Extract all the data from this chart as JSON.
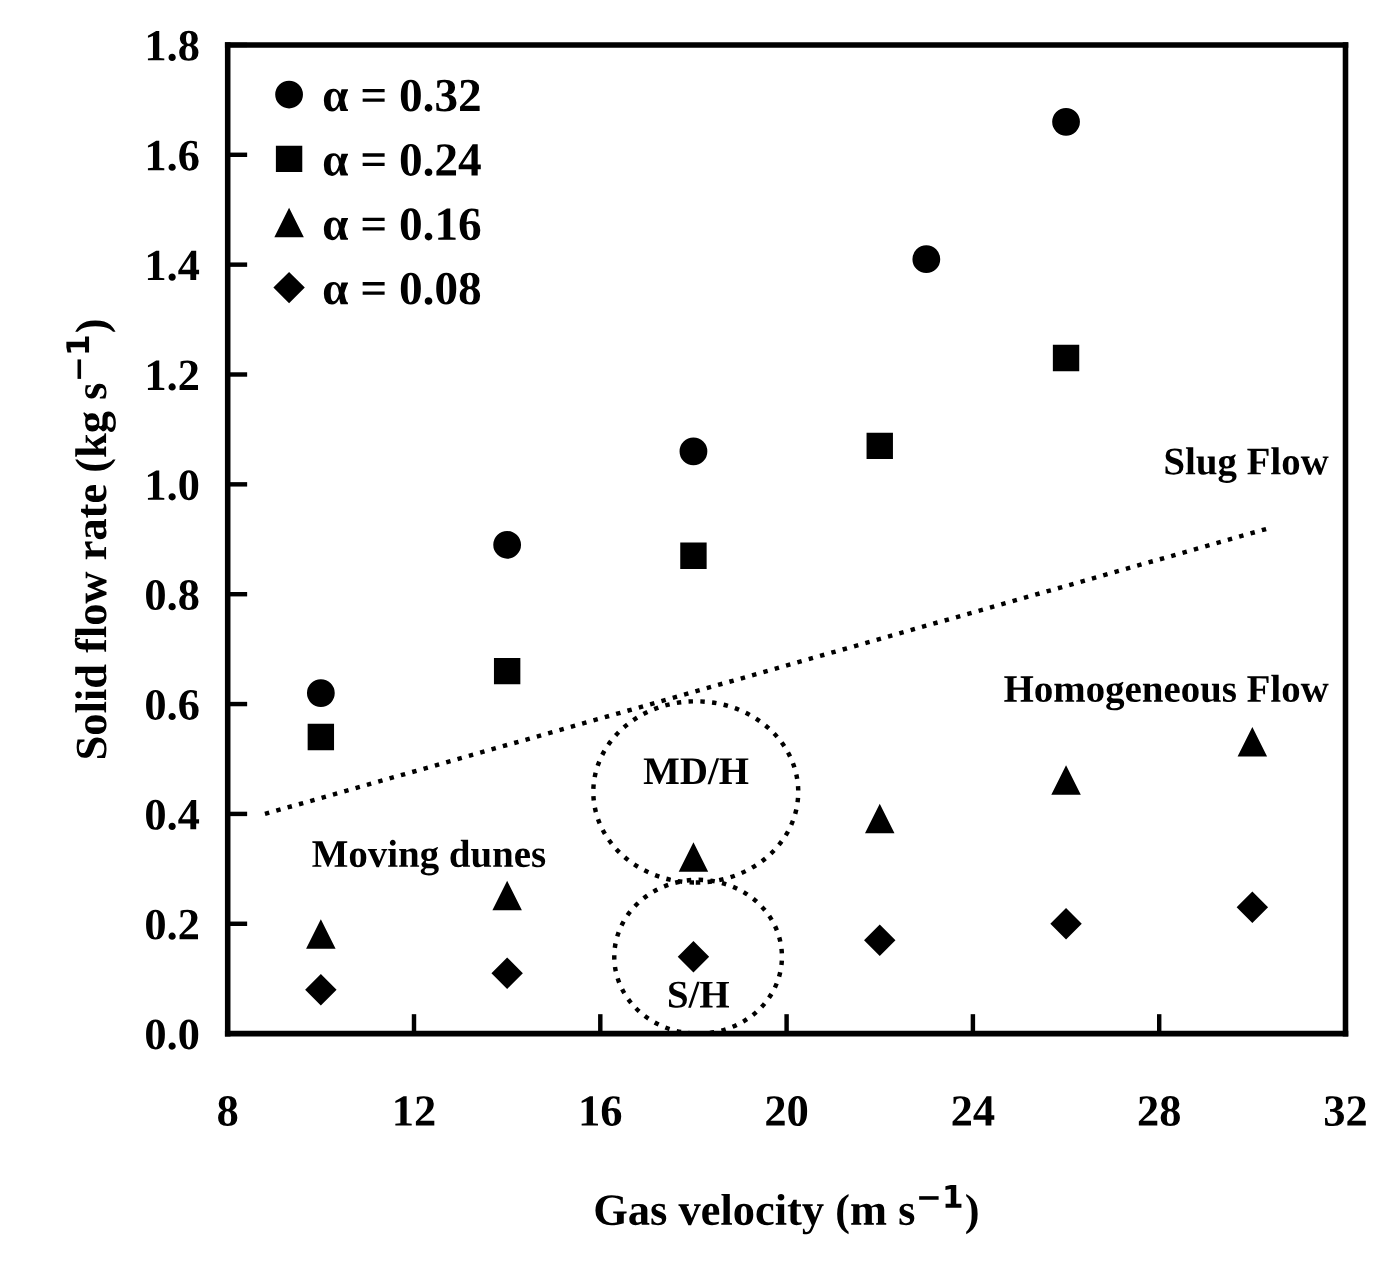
{
  "chart_data": {
    "type": "scatter",
    "xlabel": "Gas velocity (m s$^{−1}$)",
    "ylabel": "Solid flow rate (kg s$^{−1}$)",
    "xlim": [
      8,
      32
    ],
    "xticks": [
      8,
      12,
      16,
      20,
      24,
      28,
      32
    ],
    "ylim": [
      0,
      1.8
    ],
    "yticks": [
      {
        "value": 0,
        "label": "0.0"
      },
      {
        "value": 0.2,
        "label": "0.2"
      },
      {
        "value": 0.4,
        "label": "0.4"
      },
      {
        "value": 0.6,
        "label": "0.6"
      },
      {
        "value": 0.8,
        "label": "0.8"
      },
      {
        "value": 1.0,
        "label": "1.0"
      },
      {
        "value": 1.2,
        "label": "1.2"
      },
      {
        "value": 1.4,
        "label": "1.4"
      },
      {
        "value": 1.6,
        "label": "1.6"
      },
      {
        "value": 1.8,
        "label": "1.8"
      }
    ],
    "grid": false,
    "legend": "top left",
    "series": [
      {
        "name": "α = 0.32",
        "color": "#000000",
        "marker": "circle",
        "x": [
          10,
          14,
          18,
          23,
          26
        ],
        "values": [
          0.62,
          0.89,
          1.06,
          1.41,
          1.66
        ]
      },
      {
        "name": "α = 0.24",
        "color": "#000000",
        "marker": "square",
        "x": [
          10,
          14,
          18,
          22,
          26
        ],
        "values": [
          0.54,
          0.66,
          0.87,
          1.07,
          1.23
        ]
      },
      {
        "name": "α = 0.16",
        "color": "#000000",
        "marker": "triangle",
        "x": [
          10,
          14,
          18,
          22,
          26,
          30
        ],
        "values": [
          0.18,
          0.25,
          0.32,
          0.39,
          0.46,
          0.53
        ]
      },
      {
        "name": "α = 0.08",
        "color": "#000000",
        "marker": "diamond",
        "x": [
          10,
          14,
          18,
          22,
          26,
          30
        ],
        "values": [
          0.08,
          0.11,
          0.14,
          0.17,
          0.2,
          0.23
        ]
      },
      {
        "type": "line",
        "color": "#000000",
        "line_style": "dotted",
        "marker": "none",
        "x": [
          8.8,
          30.35
        ],
        "values": [
          0.4,
          0.92
        ]
      }
    ],
    "annotations": [
      "Slug Flow",
      "Homogeneous Flow",
      "Moving dunes",
      "MD/H",
      "S/H"
    ]
  }
}
